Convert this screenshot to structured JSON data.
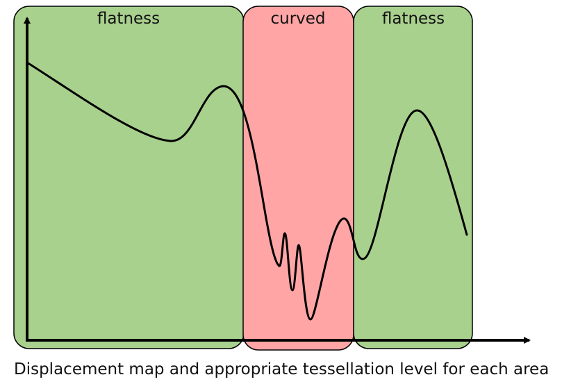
{
  "regions": [
    {
      "label": "flatness",
      "color": "#a9d18e"
    },
    {
      "label": "curved",
      "color": "#ffa5a5"
    },
    {
      "label": "flatness",
      "color": "#a9d18e"
    }
  ],
  "curve_color": "#000000",
  "axis_color": "#000000",
  "caption": "Displacement map and appropriate tessellation level for each area"
}
